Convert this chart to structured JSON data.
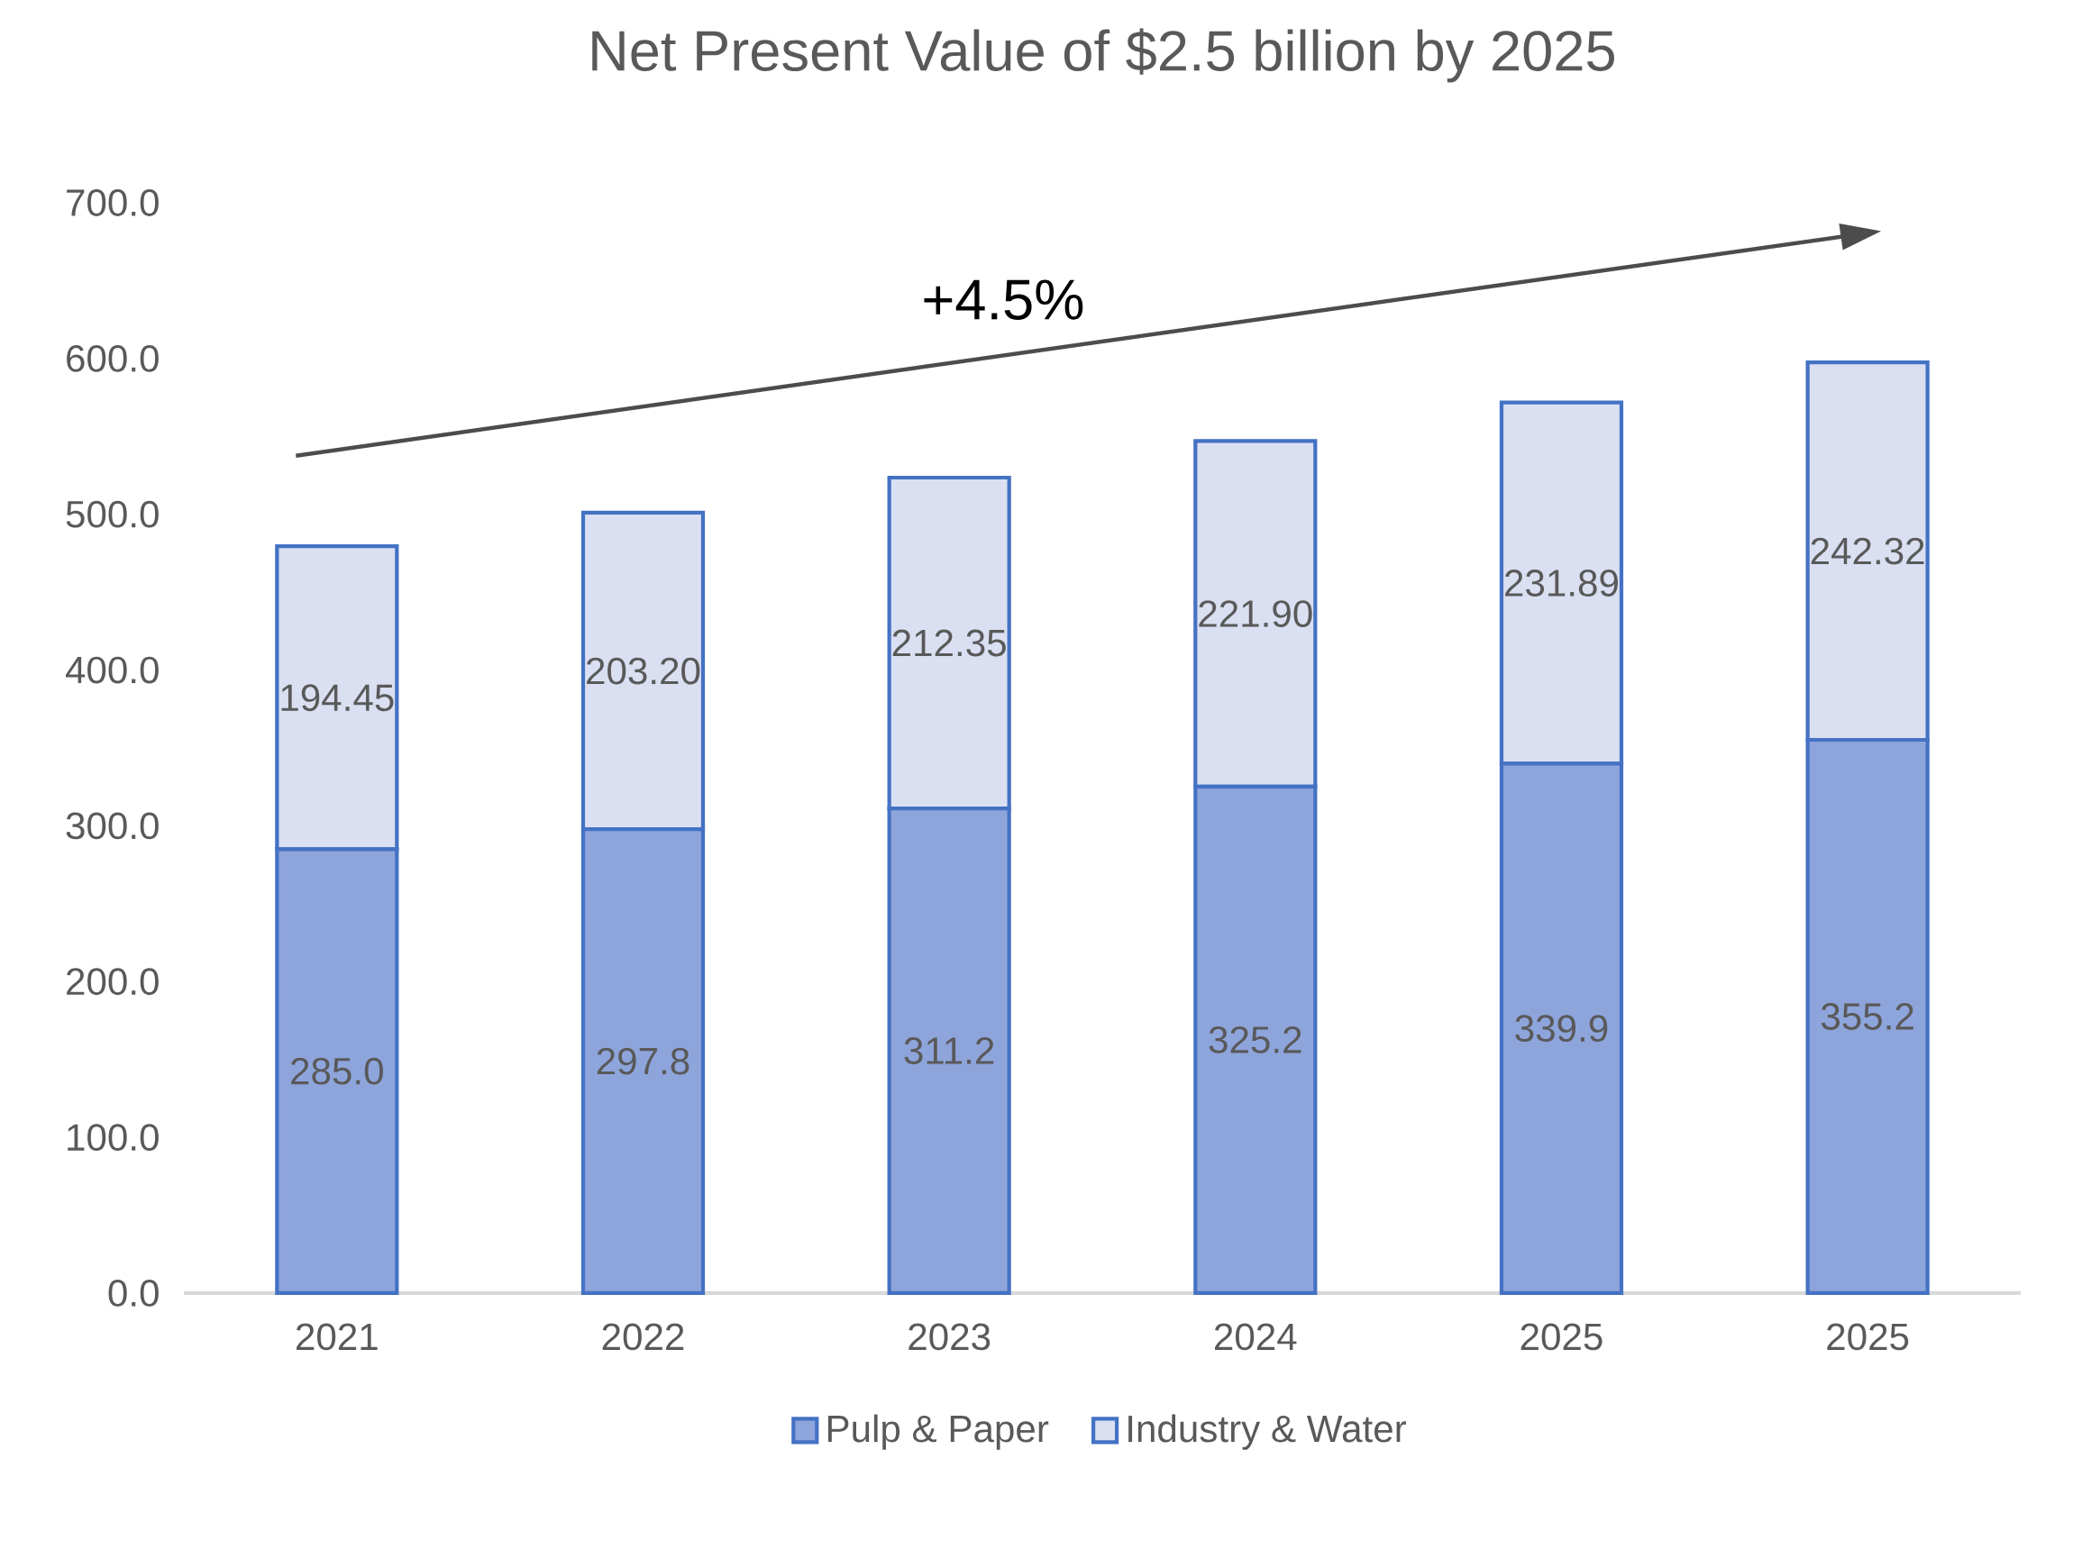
{
  "chart_data": {
    "type": "bar",
    "title": "Net Present Value of $2.5 billion by 2025",
    "categories": [
      "2021",
      "2022",
      "2023",
      "2024",
      "2025",
      "2025"
    ],
    "stacked": true,
    "series": [
      {
        "name": "Pulp & Paper",
        "color": "#8ea5dc",
        "values": [
          285.0,
          297.8,
          311.2,
          325.2,
          339.9,
          355.2
        ],
        "value_labels": [
          "285.0",
          "297.8",
          "311.2",
          "325.2",
          "339.9",
          "355.2"
        ]
      },
      {
        "name": "Industry & Water",
        "color": "#dae0f2",
        "values": [
          194.45,
          203.2,
          212.35,
          221.9,
          231.89,
          242.32
        ],
        "value_labels": [
          "194.45",
          "203.20",
          "212.35",
          "221.90",
          "231.89",
          "242.32"
        ]
      }
    ],
    "ylim": [
      0,
      700
    ],
    "yticks": [
      {
        "value": 0,
        "label": "0.0"
      },
      {
        "value": 100,
        "label": "100.0"
      },
      {
        "value": 200,
        "label": "200.0"
      },
      {
        "value": 300,
        "label": "300.0"
      },
      {
        "value": 400,
        "label": "400.0"
      },
      {
        "value": 500,
        "label": "500.0"
      },
      {
        "value": 600,
        "label": "600.0"
      },
      {
        "value": 700,
        "label": "700.0"
      }
    ],
    "annotations": [
      "+4.5%"
    ],
    "legend": "bottom"
  }
}
